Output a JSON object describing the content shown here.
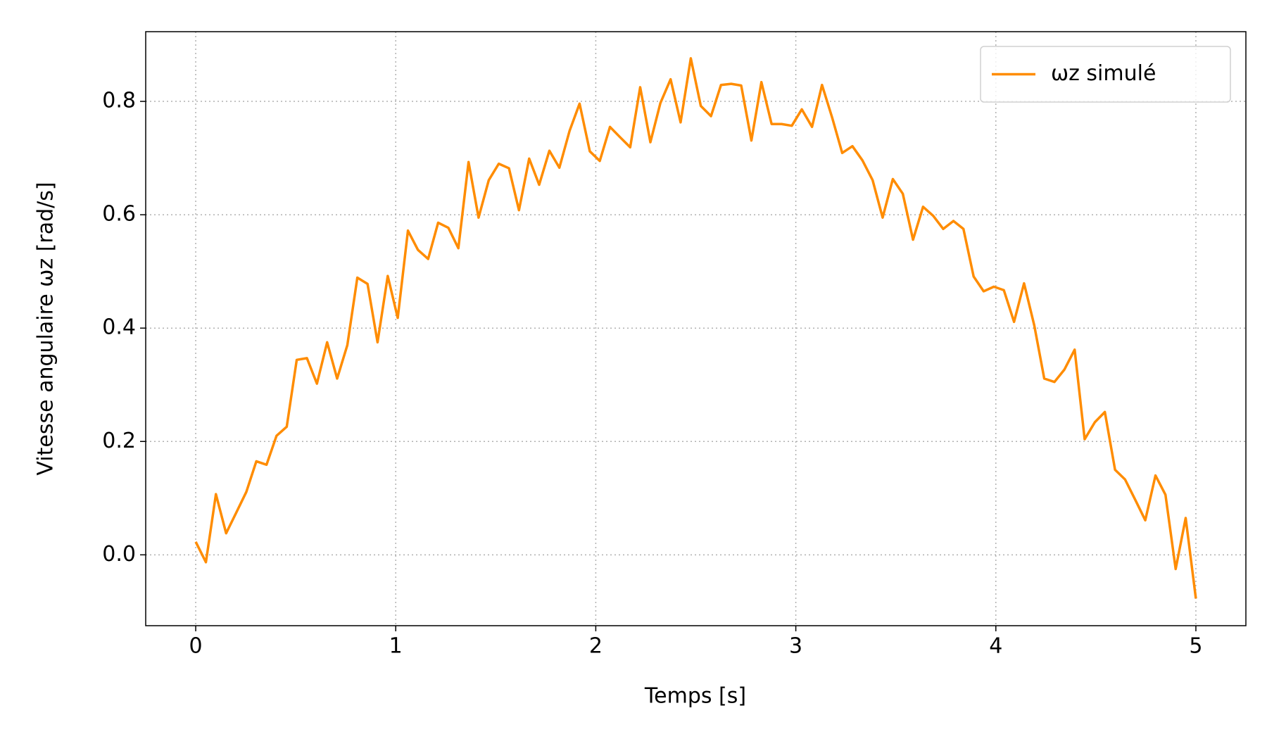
{
  "chart_data": {
    "type": "line",
    "xlabel": "Temps [s]",
    "ylabel": "Vitesse angulaire ωz [rad/s]",
    "x": [
      0,
      0.051,
      0.101,
      0.152,
      0.202,
      0.253,
      0.303,
      0.354,
      0.404,
      0.455,
      0.505,
      0.556,
      0.606,
      0.657,
      0.707,
      0.758,
      0.808,
      0.859,
      0.909,
      0.96,
      1.01,
      1.061,
      1.111,
      1.162,
      1.212,
      1.263,
      1.313,
      1.364,
      1.414,
      1.465,
      1.515,
      1.566,
      1.616,
      1.667,
      1.717,
      1.768,
      1.818,
      1.869,
      1.919,
      1.97,
      2.02,
      2.071,
      2.121,
      2.172,
      2.222,
      2.273,
      2.323,
      2.374,
      2.424,
      2.475,
      2.525,
      2.576,
      2.626,
      2.677,
      2.727,
      2.778,
      2.828,
      2.879,
      2.929,
      2.98,
      3.03,
      3.081,
      3.131,
      3.182,
      3.232,
      3.283,
      3.333,
      3.384,
      3.434,
      3.485,
      3.535,
      3.586,
      3.636,
      3.687,
      3.737,
      3.788,
      3.838,
      3.889,
      3.939,
      3.99,
      4.04,
      4.091,
      4.141,
      4.192,
      4.242,
      4.293,
      4.343,
      4.394,
      4.444,
      4.495,
      4.545,
      4.596,
      4.646,
      4.697,
      4.747,
      4.798,
      4.848,
      4.899,
      4.949,
      5.0
    ],
    "series": [
      {
        "name": "ωz simulé",
        "color": "#ff8c00",
        "values": [
          0.023,
          -0.013,
          0.107,
          0.038,
          0.074,
          0.111,
          0.165,
          0.159,
          0.21,
          0.226,
          0.344,
          0.347,
          0.302,
          0.375,
          0.311,
          0.37,
          0.489,
          0.478,
          0.375,
          0.492,
          0.418,
          0.572,
          0.538,
          0.522,
          0.586,
          0.577,
          0.541,
          0.693,
          0.595,
          0.661,
          0.69,
          0.682,
          0.608,
          0.699,
          0.653,
          0.713,
          0.683,
          0.748,
          0.796,
          0.712,
          0.695,
          0.755,
          0.737,
          0.719,
          0.825,
          0.728,
          0.797,
          0.839,
          0.763,
          0.876,
          0.792,
          0.774,
          0.829,
          0.831,
          0.828,
          0.731,
          0.834,
          0.76,
          0.76,
          0.757,
          0.786,
          0.755,
          0.829,
          0.771,
          0.709,
          0.721,
          0.696,
          0.661,
          0.595,
          0.663,
          0.637,
          0.556,
          0.614,
          0.598,
          0.575,
          0.589,
          0.575,
          0.491,
          0.465,
          0.473,
          0.467,
          0.411,
          0.479,
          0.405,
          0.311,
          0.305,
          0.327,
          0.362,
          0.204,
          0.234,
          0.252,
          0.15,
          0.133,
          0.097,
          0.061,
          0.14,
          0.106,
          -0.025,
          0.065,
          -0.077
        ]
      }
    ],
    "xlim": [
      -0.25,
      5.25
    ],
    "xticks": [
      0,
      1,
      2,
      3,
      4,
      5
    ],
    "ylim": [
      -0.125,
      0.923
    ],
    "yticks": [
      {
        "value": 0,
        "label": "0.0"
      },
      0.2,
      0.4,
      0.6,
      0.8
    ],
    "grid": true,
    "legend": "upper right"
  }
}
